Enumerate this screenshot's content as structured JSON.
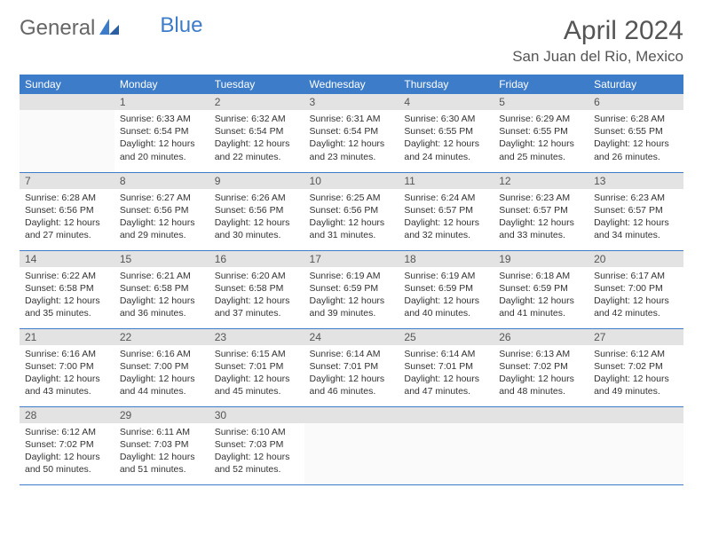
{
  "logo": {
    "part1": "General",
    "part2": "Blue"
  },
  "title": "April 2024",
  "location": "San Juan del Rio, Mexico",
  "colors": {
    "header_bg": "#3d7cc9",
    "header_text": "#ffffff",
    "daynum_bg": "#e3e3e3",
    "border": "#3d7cc9",
    "logo_blue": "#3d7cc9"
  },
  "weekdays": [
    "Sunday",
    "Monday",
    "Tuesday",
    "Wednesday",
    "Thursday",
    "Friday",
    "Saturday"
  ],
  "weeks": [
    [
      {
        "n": "",
        "lines": [
          "",
          "",
          "",
          ""
        ]
      },
      {
        "n": "1",
        "lines": [
          "Sunrise: 6:33 AM",
          "Sunset: 6:54 PM",
          "Daylight: 12 hours",
          "and 20 minutes."
        ]
      },
      {
        "n": "2",
        "lines": [
          "Sunrise: 6:32 AM",
          "Sunset: 6:54 PM",
          "Daylight: 12 hours",
          "and 22 minutes."
        ]
      },
      {
        "n": "3",
        "lines": [
          "Sunrise: 6:31 AM",
          "Sunset: 6:54 PM",
          "Daylight: 12 hours",
          "and 23 minutes."
        ]
      },
      {
        "n": "4",
        "lines": [
          "Sunrise: 6:30 AM",
          "Sunset: 6:55 PM",
          "Daylight: 12 hours",
          "and 24 minutes."
        ]
      },
      {
        "n": "5",
        "lines": [
          "Sunrise: 6:29 AM",
          "Sunset: 6:55 PM",
          "Daylight: 12 hours",
          "and 25 minutes."
        ]
      },
      {
        "n": "6",
        "lines": [
          "Sunrise: 6:28 AM",
          "Sunset: 6:55 PM",
          "Daylight: 12 hours",
          "and 26 minutes."
        ]
      }
    ],
    [
      {
        "n": "7",
        "lines": [
          "Sunrise: 6:28 AM",
          "Sunset: 6:56 PM",
          "Daylight: 12 hours",
          "and 27 minutes."
        ]
      },
      {
        "n": "8",
        "lines": [
          "Sunrise: 6:27 AM",
          "Sunset: 6:56 PM",
          "Daylight: 12 hours",
          "and 29 minutes."
        ]
      },
      {
        "n": "9",
        "lines": [
          "Sunrise: 6:26 AM",
          "Sunset: 6:56 PM",
          "Daylight: 12 hours",
          "and 30 minutes."
        ]
      },
      {
        "n": "10",
        "lines": [
          "Sunrise: 6:25 AM",
          "Sunset: 6:56 PM",
          "Daylight: 12 hours",
          "and 31 minutes."
        ]
      },
      {
        "n": "11",
        "lines": [
          "Sunrise: 6:24 AM",
          "Sunset: 6:57 PM",
          "Daylight: 12 hours",
          "and 32 minutes."
        ]
      },
      {
        "n": "12",
        "lines": [
          "Sunrise: 6:23 AM",
          "Sunset: 6:57 PM",
          "Daylight: 12 hours",
          "and 33 minutes."
        ]
      },
      {
        "n": "13",
        "lines": [
          "Sunrise: 6:23 AM",
          "Sunset: 6:57 PM",
          "Daylight: 12 hours",
          "and 34 minutes."
        ]
      }
    ],
    [
      {
        "n": "14",
        "lines": [
          "Sunrise: 6:22 AM",
          "Sunset: 6:58 PM",
          "Daylight: 12 hours",
          "and 35 minutes."
        ]
      },
      {
        "n": "15",
        "lines": [
          "Sunrise: 6:21 AM",
          "Sunset: 6:58 PM",
          "Daylight: 12 hours",
          "and 36 minutes."
        ]
      },
      {
        "n": "16",
        "lines": [
          "Sunrise: 6:20 AM",
          "Sunset: 6:58 PM",
          "Daylight: 12 hours",
          "and 37 minutes."
        ]
      },
      {
        "n": "17",
        "lines": [
          "Sunrise: 6:19 AM",
          "Sunset: 6:59 PM",
          "Daylight: 12 hours",
          "and 39 minutes."
        ]
      },
      {
        "n": "18",
        "lines": [
          "Sunrise: 6:19 AM",
          "Sunset: 6:59 PM",
          "Daylight: 12 hours",
          "and 40 minutes."
        ]
      },
      {
        "n": "19",
        "lines": [
          "Sunrise: 6:18 AM",
          "Sunset: 6:59 PM",
          "Daylight: 12 hours",
          "and 41 minutes."
        ]
      },
      {
        "n": "20",
        "lines": [
          "Sunrise: 6:17 AM",
          "Sunset: 7:00 PM",
          "Daylight: 12 hours",
          "and 42 minutes."
        ]
      }
    ],
    [
      {
        "n": "21",
        "lines": [
          "Sunrise: 6:16 AM",
          "Sunset: 7:00 PM",
          "Daylight: 12 hours",
          "and 43 minutes."
        ]
      },
      {
        "n": "22",
        "lines": [
          "Sunrise: 6:16 AM",
          "Sunset: 7:00 PM",
          "Daylight: 12 hours",
          "and 44 minutes."
        ]
      },
      {
        "n": "23",
        "lines": [
          "Sunrise: 6:15 AM",
          "Sunset: 7:01 PM",
          "Daylight: 12 hours",
          "and 45 minutes."
        ]
      },
      {
        "n": "24",
        "lines": [
          "Sunrise: 6:14 AM",
          "Sunset: 7:01 PM",
          "Daylight: 12 hours",
          "and 46 minutes."
        ]
      },
      {
        "n": "25",
        "lines": [
          "Sunrise: 6:14 AM",
          "Sunset: 7:01 PM",
          "Daylight: 12 hours",
          "and 47 minutes."
        ]
      },
      {
        "n": "26",
        "lines": [
          "Sunrise: 6:13 AM",
          "Sunset: 7:02 PM",
          "Daylight: 12 hours",
          "and 48 minutes."
        ]
      },
      {
        "n": "27",
        "lines": [
          "Sunrise: 6:12 AM",
          "Sunset: 7:02 PM",
          "Daylight: 12 hours",
          "and 49 minutes."
        ]
      }
    ],
    [
      {
        "n": "28",
        "lines": [
          "Sunrise: 6:12 AM",
          "Sunset: 7:02 PM",
          "Daylight: 12 hours",
          "and 50 minutes."
        ]
      },
      {
        "n": "29",
        "lines": [
          "Sunrise: 6:11 AM",
          "Sunset: 7:03 PM",
          "Daylight: 12 hours",
          "and 51 minutes."
        ]
      },
      {
        "n": "30",
        "lines": [
          "Sunrise: 6:10 AM",
          "Sunset: 7:03 PM",
          "Daylight: 12 hours",
          "and 52 minutes."
        ]
      },
      {
        "n": "",
        "lines": [
          "",
          "",
          "",
          ""
        ]
      },
      {
        "n": "",
        "lines": [
          "",
          "",
          "",
          ""
        ]
      },
      {
        "n": "",
        "lines": [
          "",
          "",
          "",
          ""
        ]
      },
      {
        "n": "",
        "lines": [
          "",
          "",
          "",
          ""
        ]
      }
    ]
  ]
}
